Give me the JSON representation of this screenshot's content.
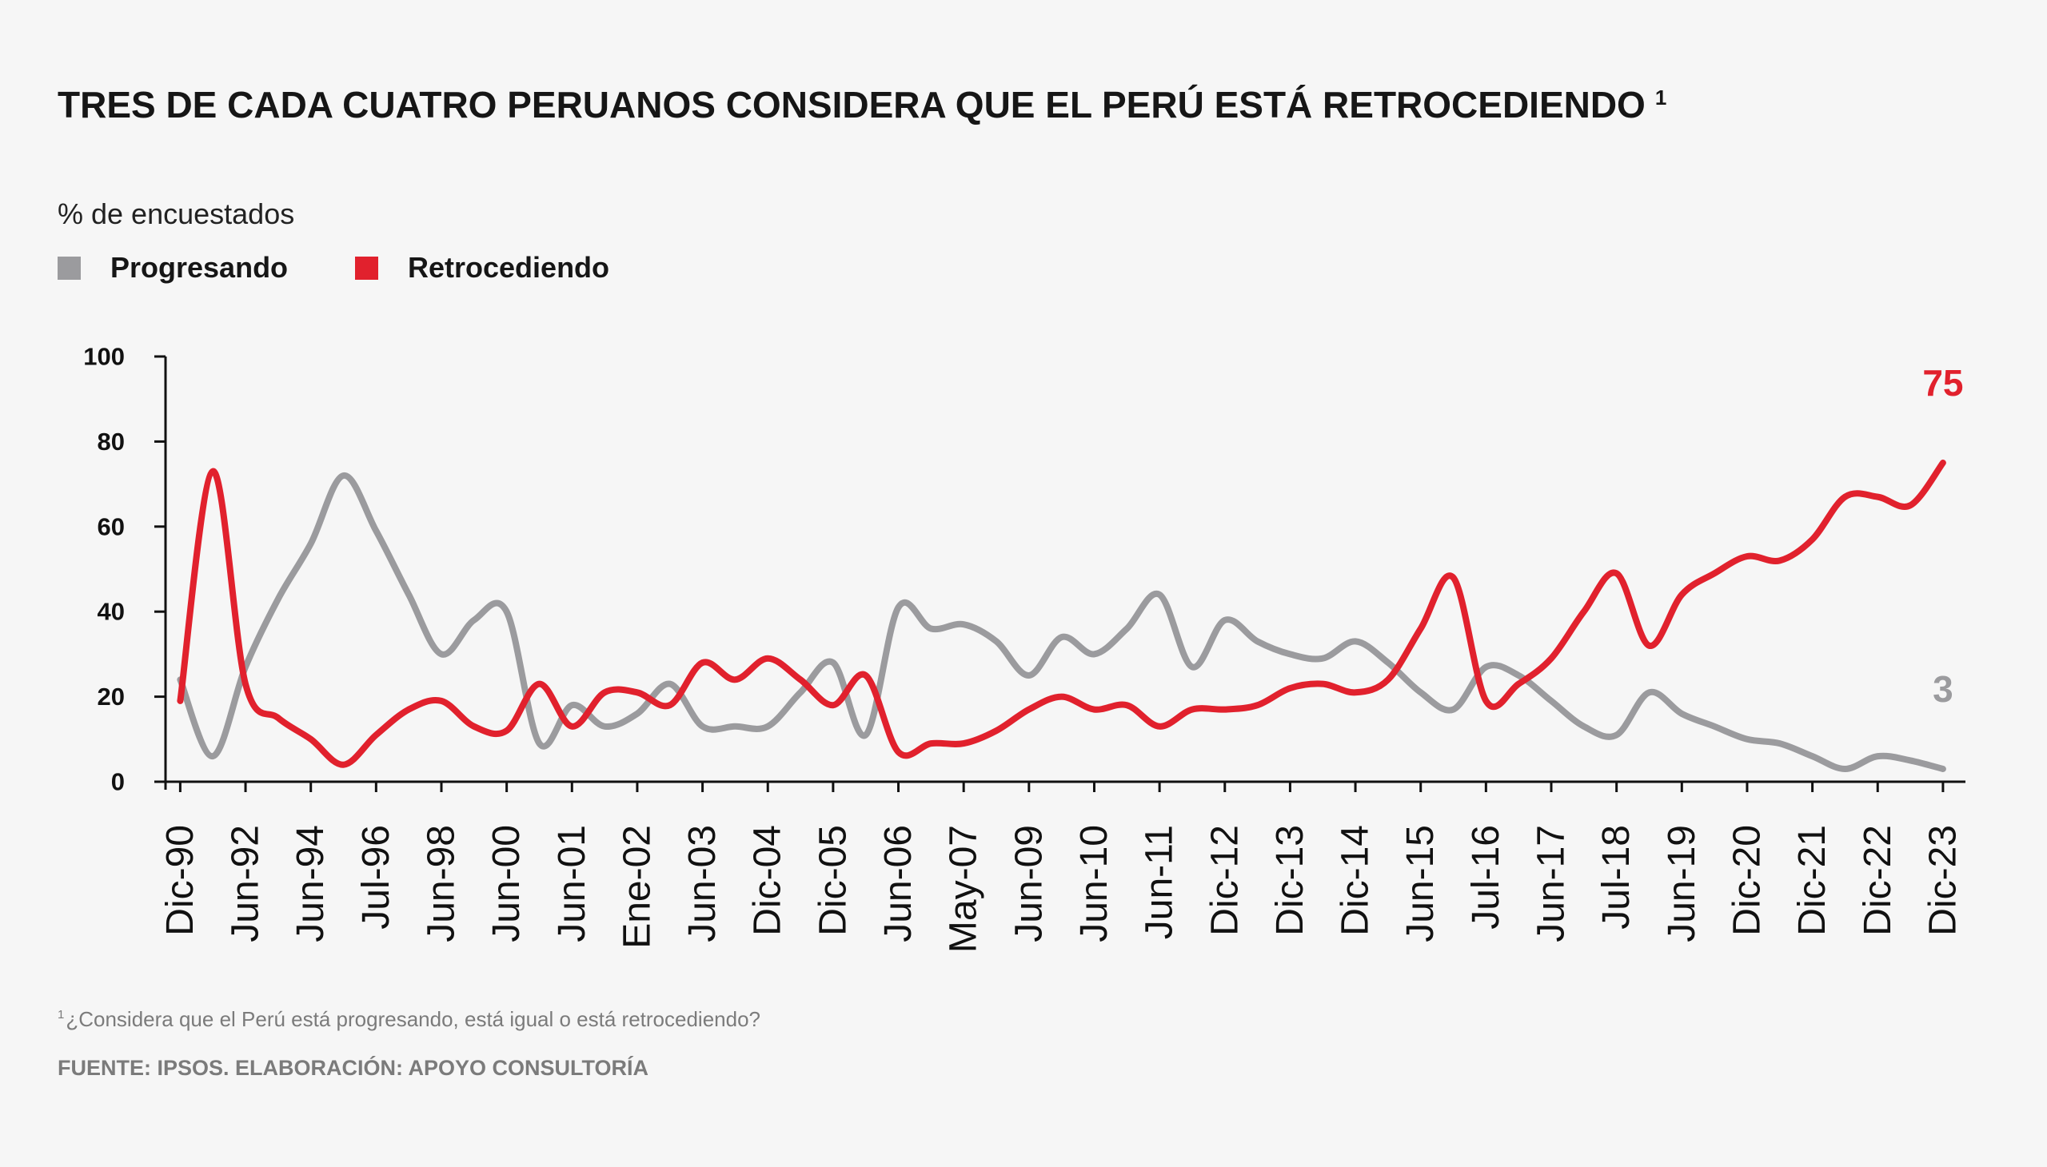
{
  "chart_data": {
    "type": "line",
    "title": "TRES DE CADA CUATRO PERUANOS CONSIDERA QUE EL PERÚ ESTÁ RETROCEDIENDO",
    "title_footnote_marker": "1",
    "ylabel": "% de encuestados",
    "ylim": [
      0,
      100
    ],
    "y_ticks": [
      0,
      20,
      40,
      60,
      80,
      100
    ],
    "x_tick_labels": [
      "Dic-90",
      "Jun-92",
      "Jun-94",
      "Jul-96",
      "Jun-98",
      "Jun-00",
      "Jun-01",
      "Ene-02",
      "Jun-03",
      "Dic-04",
      "Dic-05",
      "Jun-06",
      "May-07",
      "Jun-09",
      "Jun-10",
      "Jun-11",
      "Dic-12",
      "Dic-13",
      "Dic-14",
      "Jun-15",
      "Jul-16",
      "Jun-17",
      "Jul-18",
      "Jun-19",
      "Dic-20",
      "Dic-21",
      "Dic-22",
      "Dic-23"
    ],
    "series": [
      {
        "name": "Progresando",
        "color": "#9b9b9e",
        "values": [
          24,
          6,
          27,
          43,
          56,
          72,
          59,
          44,
          30,
          38,
          40,
          9,
          18,
          13,
          16,
          23,
          13,
          13,
          13,
          21,
          28,
          11,
          41,
          36,
          37,
          33,
          25,
          34,
          30,
          36,
          44,
          27,
          38,
          33,
          30,
          29,
          33,
          28,
          21,
          17,
          27,
          25,
          19,
          13,
          11,
          21,
          16,
          13,
          10,
          9,
          6,
          3,
          6,
          5,
          3
        ]
      },
      {
        "name": "Retrocediendo",
        "color": "#e1212d",
        "values": [
          19,
          73,
          23,
          15,
          10,
          4,
          11,
          17,
          19,
          13,
          12,
          23,
          13,
          21,
          21,
          18,
          28,
          24,
          29,
          24,
          18,
          25,
          7,
          9,
          9,
          12,
          17,
          20,
          17,
          18,
          13,
          17,
          17,
          18,
          22,
          23,
          21,
          24,
          36,
          48,
          19,
          23,
          29,
          40,
          49,
          32,
          44,
          49,
          53,
          52,
          57,
          67,
          67,
          65,
          75
        ]
      }
    ],
    "end_labels": [
      {
        "series": "Retrocediendo",
        "text": "75"
      },
      {
        "series": "Progresando",
        "text": "3"
      }
    ],
    "legend": "top-left",
    "grid": false
  },
  "footnote": {
    "marker": "1",
    "text": "¿Considera que el Perú está progresando, está igual o está retrocediendo?"
  },
  "source": "FUENTE: IPSOS. ELABORACIÓN: APOYO CONSULTORÍA"
}
